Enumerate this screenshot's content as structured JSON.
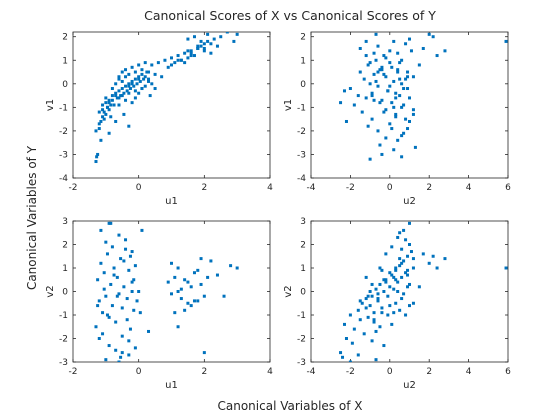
{
  "figure": {
    "title": "Canonical Scores of X vs Canonical Scores of Y",
    "xlabel": "Canonical Variables of X",
    "ylabel": "Canonical Variables of Y"
  },
  "colors": {
    "marker": "#0072BD",
    "axes": "#262626",
    "background": "#ffffff"
  },
  "chart_data": [
    {
      "type": "scatter",
      "xlabel": "u1",
      "ylabel": "v1",
      "xlim": [
        -2,
        4
      ],
      "ylim": [
        -4,
        2.2
      ],
      "xticks": [
        -2,
        0,
        2,
        4
      ],
      "yticks": [
        -4,
        -3,
        -2,
        -1,
        0,
        1,
        2
      ],
      "grid": false,
      "x": [
        -1.3,
        -1.28,
        -1.25,
        -1.3,
        -1.2,
        -1.15,
        -1.1,
        -1.05,
        -1.2,
        -1.1,
        -1.0,
        -0.95,
        -0.9,
        -0.85,
        -1.0,
        -0.9,
        -0.8,
        -0.75,
        -0.7,
        -0.6,
        -1.1,
        -1.05,
        -1.0,
        -0.95,
        -0.9,
        -0.85,
        -0.8,
        -0.7,
        -0.65,
        -0.6,
        -0.55,
        -0.5,
        -0.45,
        -0.4,
        -0.35,
        -0.3,
        -0.25,
        -0.2,
        -0.15,
        -0.1,
        -0.05,
        0.0,
        0.05,
        0.1,
        0.15,
        0.2,
        0.25,
        0.3,
        -0.6,
        -0.5,
        -0.4,
        -0.3,
        -0.2,
        -0.1,
        0.0,
        0.1,
        0.2,
        0.3,
        -0.8,
        -0.7,
        -0.6,
        -0.5,
        -0.4,
        -0.3,
        -0.2,
        -0.1,
        0.0,
        0.1,
        -0.5,
        -0.4,
        -0.3,
        -0.2,
        -0.1,
        0.0,
        0.1,
        0.2,
        0.3,
        0.4,
        0.5,
        0.4,
        0.6,
        0.8,
        0.9,
        1.0,
        1.1,
        1.2,
        1.3,
        1.4,
        1.5,
        1.6,
        1.7,
        1.8,
        1.9,
        2.0,
        2.1,
        1.0,
        1.2,
        1.4,
        1.6,
        1.8,
        2.0,
        2.2,
        2.4,
        1.5,
        1.7,
        1.9,
        2.1,
        2.3,
        2.5,
        2.7,
        2.9,
        3.0,
        1.6,
        1.8,
        2.0,
        2.2,
        1.3,
        1.5,
        -0.7,
        -0.3,
        0.5,
        0.7,
        -0.9,
        -1.15,
        -0.45,
        0.35,
        -1.2,
        -0.6
      ],
      "y": [
        -3.3,
        -3.1,
        -3.0,
        -2.0,
        -1.9,
        -1.6,
        -1.4,
        -1.5,
        -1.2,
        -1.1,
        -1.3,
        -1.0,
        -1.1,
        -0.9,
        -0.6,
        -0.8,
        -0.7,
        -0.9,
        -0.5,
        -0.6,
        -0.9,
        -1.2,
        -0.8,
        -1.0,
        -0.7,
        -1.4,
        -0.5,
        -0.4,
        -0.6,
        -0.3,
        -0.5,
        -0.2,
        -0.4,
        -0.1,
        -0.3,
        0.0,
        -0.2,
        0.1,
        -0.1,
        0.2,
        0.0,
        0.3,
        0.1,
        0.4,
        0.2,
        0.3,
        0.5,
        0.2,
        0.3,
        0.5,
        0.6,
        0.4,
        0.7,
        0.5,
        0.8,
        0.6,
        0.9,
        0.5,
        -0.2,
        0.0,
        0.2,
        0.1,
        0.3,
        -0.1,
        0.0,
        -0.3,
        0.2,
        -0.2,
        -0.5,
        -0.7,
        -0.4,
        -0.8,
        -0.6,
        -0.4,
        -0.2,
        -0.1,
        0.1,
        0.0,
        0.4,
        0.8,
        0.9,
        1.0,
        0.7,
        1.1,
        0.9,
        1.2,
        1.0,
        1.3,
        1.1,
        1.4,
        1.2,
        1.5,
        1.6,
        1.7,
        1.8,
        0.8,
        1.0,
        0.9,
        1.3,
        1.5,
        1.4,
        1.7,
        1.6,
        1.9,
        2.0,
        1.8,
        2.1,
        1.9,
        2.0,
        2.2,
        1.8,
        2.1,
        1.2,
        1.6,
        1.5,
        1.3,
        1.0,
        1.4,
        -1.6,
        -1.8,
        -0.2,
        0.3,
        -2.1,
        -2.4,
        -1.3,
        -0.5,
        -1.7,
        -0.9
      ]
    },
    {
      "type": "scatter",
      "xlabel": "u2",
      "ylabel": "v1",
      "xlim": [
        -4,
        6
      ],
      "ylim": [
        -4,
        2.2
      ],
      "xticks": [
        -4,
        -2,
        0,
        2,
        4,
        6
      ],
      "yticks": [
        -4,
        -3,
        -2,
        -1,
        0,
        1,
        2
      ],
      "grid": false,
      "x": [
        -2.5,
        -2.3,
        -2.2,
        -2.0,
        -1.8,
        -1.6,
        -1.5,
        -1.4,
        -1.3,
        -1.2,
        -1.1,
        -1.0,
        -0.9,
        -0.8,
        -0.7,
        -0.6,
        -0.5,
        -0.4,
        -0.3,
        -0.2,
        -0.1,
        0.0,
        0.1,
        0.2,
        0.3,
        0.4,
        0.5,
        0.6,
        0.7,
        0.8,
        0.9,
        1.0,
        1.1,
        1.2,
        -1.5,
        -1.2,
        -1.0,
        -0.8,
        -0.6,
        -0.4,
        -0.2,
        0.0,
        0.2,
        0.4,
        0.6,
        0.8,
        1.0,
        -0.9,
        -0.7,
        -0.5,
        -0.3,
        -0.1,
        0.1,
        0.3,
        0.5,
        0.7,
        0.9,
        -1.1,
        -0.9,
        -0.6,
        -0.3,
        0.0,
        0.3,
        0.6,
        0.9,
        1.2,
        -0.5,
        -0.2,
        0.1,
        0.4,
        0.7,
        1.0,
        0.3,
        0.6,
        0.9,
        1.2,
        1.5,
        -0.8,
        -0.4,
        0.2,
        0.5,
        -1.2,
        -0.7,
        1.7,
        2.0,
        2.2,
        2.4,
        2.8,
        5.9,
        -1.0,
        -0.4,
        0.2,
        0.6,
        1.3,
        -0.6,
        0.0,
        0.4,
        -0.2,
        0.8
      ],
      "y": [
        -0.8,
        -0.3,
        -1.6,
        -0.2,
        -0.9,
        -0.5,
        0.5,
        -1.2,
        0.2,
        -0.6,
        0.8,
        0.0,
        -0.4,
        0.4,
        1.0,
        -0.1,
        0.6,
        -0.7,
        1.2,
        0.3,
        -0.3,
        0.9,
        -0.8,
        0.1,
        -1.3,
        0.5,
        -0.5,
        -1.0,
        -0.2,
        -1.5,
        0.3,
        -0.6,
        1.4,
        -1.1,
        1.5,
        1.2,
        0.9,
        1.3,
        1.6,
        0.7,
        1.1,
        1.4,
        1.8,
        0.6,
        1.0,
        1.7,
        1.9,
        -0.5,
        0.1,
        -0.8,
        0.4,
        -0.3,
        0.7,
        -0.6,
        0.2,
        -0.9,
        0.5,
        -1.8,
        -1.5,
        -2.0,
        -1.2,
        -1.7,
        -1.4,
        -2.2,
        -1.9,
        -1.3,
        -2.6,
        -2.3,
        -1.9,
        -2.4,
        -2.1,
        -1.6,
        -0.4,
        0.0,
        -0.2,
        0.3,
        0.8,
        -0.7,
        0.6,
        -1.0,
        0.9,
        1.8,
        2.1,
        1.5,
        2.1,
        2.0,
        1.2,
        1.4,
        1.8,
        -3.2,
        -3.0,
        -2.8,
        -3.1,
        -2.7,
        0.5,
        -0.1,
        1.3,
        -1.1,
        0.2
      ]
    },
    {
      "type": "scatter",
      "xlabel": "u1",
      "ylabel": "v2",
      "xlim": [
        -2,
        4
      ],
      "ylim": [
        -3,
        3
      ],
      "xticks": [
        -2,
        0,
        2,
        4
      ],
      "yticks": [
        -3,
        -2,
        -1,
        0,
        1,
        2,
        3
      ],
      "grid": false,
      "x": [
        -1.3,
        -1.25,
        -1.2,
        -1.15,
        -1.1,
        -1.05,
        -1.0,
        -0.95,
        -0.9,
        -0.85,
        -0.8,
        -0.75,
        -0.7,
        -0.65,
        -0.6,
        -0.55,
        -0.5,
        -0.45,
        -0.4,
        -0.35,
        -0.3,
        -0.25,
        -0.2,
        -0.15,
        -0.1,
        -0.05,
        0.0,
        -1.2,
        -1.1,
        -1.0,
        -0.9,
        -0.8,
        -0.7,
        -0.6,
        -0.5,
        -0.4,
        -0.3,
        -0.2,
        -0.1,
        -1.25,
        -1.05,
        -0.95,
        -0.75,
        -0.65,
        -0.45,
        -0.35,
        -0.15,
        -1.15,
        -0.85,
        -0.55,
        -0.25,
        0.05,
        0.9,
        1.0,
        1.1,
        1.2,
        1.3,
        1.4,
        1.5,
        1.6,
        1.7,
        1.8,
        1.9,
        2.0,
        1.0,
        1.2,
        1.4,
        1.6,
        1.8,
        2.2,
        2.4,
        2.6,
        2.8,
        3.0,
        1.1,
        1.3,
        1.5,
        1.7,
        1.9,
        2.1,
        -1.0,
        -0.6,
        -0.3,
        0.1,
        0.3,
        -0.9,
        -0.5,
        2.0,
        1.2,
        -0.2
      ],
      "y": [
        -1.5,
        0.5,
        -0.4,
        1.2,
        -0.9,
        0.8,
        -0.2,
        1.6,
        -1.1,
        0.3,
        -0.6,
        1.0,
        -1.3,
        0.6,
        -0.1,
        1.4,
        -0.7,
        0.2,
        1.8,
        -0.3,
        0.9,
        -1.6,
        0.4,
        -0.8,
        1.1,
        -0.4,
        0.0,
        -2.0,
        -1.8,
        2.1,
        -2.3,
        1.9,
        -2.5,
        2.4,
        -1.9,
        2.2,
        -2.1,
        1.7,
        -2.4,
        -0.6,
        0.1,
        -1.0,
        0.7,
        -0.2,
        1.3,
        -1.2,
        0.5,
        2.6,
        2.9,
        -2.8,
        1.5,
        -0.9,
        0.4,
        -0.1,
        0.6,
        0.0,
        -0.3,
        0.5,
        -0.5,
        0.2,
        0.8,
        -0.4,
        0.3,
        -0.2,
        1.2,
        1.0,
        -0.8,
        -0.6,
        0.9,
        1.3,
        0.7,
        -0.2,
        1.1,
        1.0,
        -0.9,
        0.1,
        0.4,
        -0.4,
        1.4,
        0.6,
        -2.9,
        -3.0,
        -2.7,
        2.6,
        -1.7,
        2.9,
        -2.6,
        -2.6,
        -1.5,
        0.0
      ]
    },
    {
      "type": "scatter",
      "xlabel": "u2",
      "ylabel": "v2",
      "xlim": [
        -4,
        6
      ],
      "ylim": [
        -3,
        3
      ],
      "xticks": [
        -4,
        -2,
        0,
        2,
        4,
        6
      ],
      "yticks": [
        -3,
        -2,
        -1,
        0,
        1,
        2,
        3
      ],
      "grid": false,
      "x": [
        -2.5,
        -2.3,
        -2.2,
        -2.0,
        -1.8,
        -1.6,
        -1.5,
        -1.4,
        -1.3,
        -1.2,
        -1.1,
        -1.0,
        -0.9,
        -0.8,
        -0.7,
        -0.6,
        -0.5,
        -0.4,
        -0.3,
        -0.2,
        -0.1,
        0.0,
        0.1,
        0.2,
        0.3,
        0.4,
        0.5,
        0.6,
        0.7,
        0.8,
        0.9,
        1.0,
        1.1,
        1.2,
        -1.5,
        -1.2,
        -1.0,
        -0.8,
        -0.6,
        -0.4,
        -0.2,
        0.0,
        0.2,
        0.4,
        0.6,
        0.8,
        1.0,
        -0.9,
        -0.7,
        -0.5,
        -0.3,
        -0.1,
        0.1,
        0.3,
        0.5,
        0.7,
        0.9,
        -1.1,
        -0.9,
        -0.6,
        -0.3,
        0.0,
        0.3,
        0.6,
        0.9,
        1.2,
        -0.5,
        -0.2,
        0.1,
        0.4,
        0.7,
        1.0,
        0.3,
        0.6,
        0.9,
        1.2,
        1.5,
        -0.8,
        -0.4,
        0.2,
        0.5,
        -1.2,
        -0.7,
        1.7,
        2.0,
        2.2,
        2.4,
        2.8,
        5.9,
        -2.4,
        -2.0,
        -1.6,
        -1.9,
        0.5,
        1.0,
        0.8
      ],
      "y": [
        -2.6,
        -1.4,
        -2.0,
        -1.0,
        -1.6,
        -0.8,
        -1.2,
        -0.5,
        -1.8,
        -0.3,
        -1.1,
        -0.6,
        -0.2,
        -0.9,
        0.1,
        -0.4,
        0.3,
        -0.7,
        0.0,
        0.5,
        -0.2,
        0.2,
        0.7,
        0.1,
        0.9,
        0.4,
        1.1,
        0.6,
        1.3,
        0.8,
        1.5,
        0.3,
        1.7,
        1.0,
        -0.4,
        -0.7,
        0.0,
        -1.3,
        -0.1,
        -0.9,
        0.4,
        -0.6,
        0.6,
        0.0,
        1.8,
        2.2,
        2.0,
        -2.1,
        -1.7,
        -1.5,
        -2.3,
        -1.0,
        -1.4,
        -0.5,
        -0.8,
        -0.1,
        0.2,
        -0.2,
        0.3,
        -0.3,
        0.5,
        0.8,
        1.0,
        1.2,
        0.9,
        1.4,
        1.0,
        1.6,
        1.9,
        2.3,
        2.6,
        2.9,
        0.5,
        -0.3,
        0.7,
        -0.5,
        0.2,
        -1.2,
        0.9,
        -0.9,
        1.4,
        0.6,
        -2.9,
        1.6,
        1.2,
        1.5,
        1.0,
        1.4,
        1.0,
        -2.8,
        -3.0,
        -2.7,
        -2.2,
        2.5,
        -0.6,
        -1.0
      ]
    }
  ]
}
